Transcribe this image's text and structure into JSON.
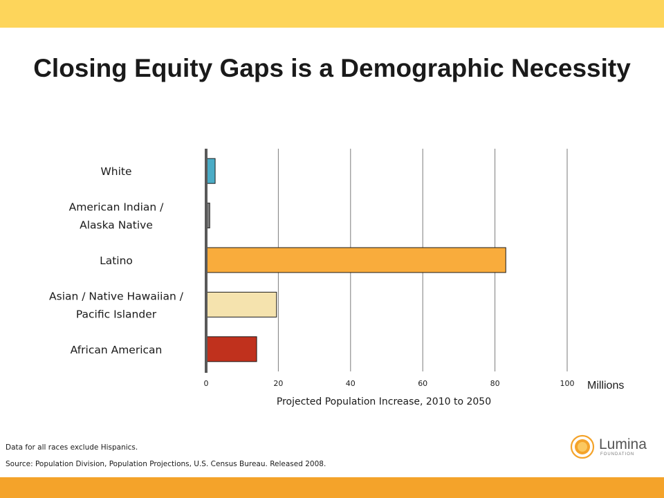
{
  "title": "Closing Equity Gaps is a Demographic Necessity",
  "notes": {
    "exclusion": "Data for all races exclude Hispanics.",
    "source": "Source: Population Division, Population Projections, U.S. Census Bureau. Released 2008."
  },
  "logo": {
    "name": "Lumina",
    "sub": "FOUNDATION"
  },
  "colors": {
    "top_band": "#fdd55b",
    "bottom_band": "#f4a32a",
    "axis": "#595959"
  },
  "chart_data": {
    "type": "bar",
    "orientation": "horizontal",
    "categories": [
      "White",
      "American Indian / Alaska Native",
      "Latino",
      "Asian / Native Hawaiian / Pacific Islander",
      "African American"
    ],
    "category_lines": [
      [
        "White"
      ],
      [
        "American Indian /",
        "Alaska Native"
      ],
      [
        "Latino"
      ],
      [
        "Asian / Native Hawaiian /",
        "Pacific Islander"
      ],
      [
        "African American"
      ]
    ],
    "values": [
      2.5,
      1,
      83,
      19.5,
      14
    ],
    "bar_colors": [
      "#4bacc6",
      "#7f7f7f",
      "#f9ac3c",
      "#f5e3ae",
      "#c0311d"
    ],
    "xlabel": "Projected Population Increase, 2010 to 2050",
    "unit": "Millions",
    "xlim": [
      0,
      100
    ],
    "xticks": [
      0,
      20,
      40,
      60,
      80,
      100
    ],
    "grid": true
  }
}
